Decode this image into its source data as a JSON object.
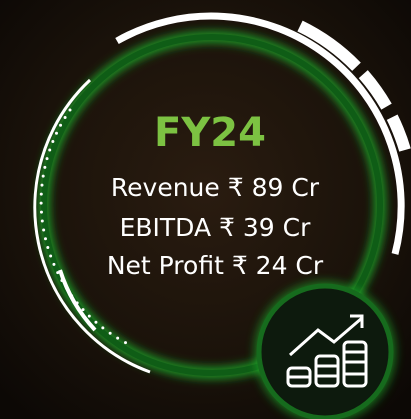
{
  "title": "FY24",
  "lines": [
    "Revenue ₹ 89 Cr",
    "EBITDA ₹ 39 Cr",
    "Net Profit ₹ 24 Cr"
  ]
}
